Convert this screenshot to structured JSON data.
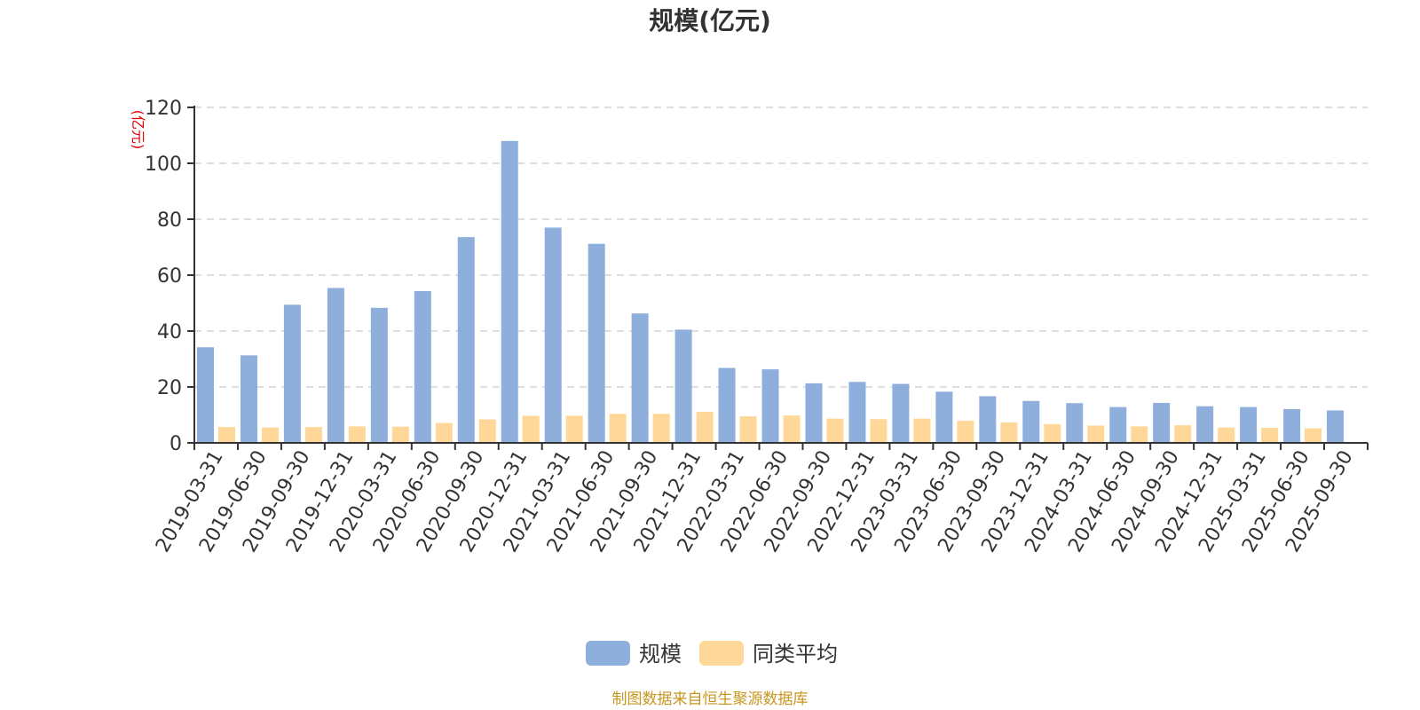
{
  "chart_data": {
    "type": "bar",
    "title": "规模(亿元)",
    "ylabel": "(亿元)",
    "ylim": [
      0,
      120
    ],
    "yticks": [
      0,
      20,
      40,
      60,
      80,
      100,
      120
    ],
    "grid": true,
    "legend_position": "bottom-center",
    "categories": [
      "2019-03-31",
      "2019-06-30",
      "2019-09-30",
      "2019-12-31",
      "2020-03-31",
      "2020-06-30",
      "2020-09-30",
      "2020-12-31",
      "2021-03-31",
      "2021-06-30",
      "2021-09-30",
      "2021-12-31",
      "2022-03-31",
      "2022-06-30",
      "2022-09-30",
      "2022-12-31",
      "2023-03-31",
      "2023-06-30",
      "2023-09-30",
      "2023-12-31",
      "2024-03-31",
      "2024-06-30",
      "2024-09-30",
      "2024-12-31",
      "2025-03-31",
      "2025-06-30",
      "2025-09-30"
    ],
    "series": [
      {
        "name": "规模",
        "color": "#8eaedb",
        "values": [
          34.2,
          31.3,
          49.4,
          55.4,
          48.3,
          54.3,
          73.6,
          108.0,
          77.0,
          71.2,
          46.3,
          40.5,
          26.8,
          26.3,
          21.3,
          21.8,
          21.1,
          18.3,
          16.7,
          15.0,
          14.2,
          12.8,
          14.3,
          13.1,
          12.8,
          12.1,
          11.6
        ]
      },
      {
        "name": "同类平均",
        "color": "#ffd899",
        "values": [
          5.7,
          5.5,
          5.7,
          5.9,
          5.8,
          7.1,
          8.4,
          9.7,
          9.7,
          10.4,
          10.4,
          11.1,
          9.5,
          9.8,
          8.7,
          8.5,
          8.7,
          7.9,
          7.3,
          6.7,
          6.2,
          5.9,
          6.3,
          5.5,
          5.4,
          5.2,
          null
        ]
      }
    ]
  },
  "footer": {
    "source": "制图数据来自恒生聚源数据库"
  }
}
